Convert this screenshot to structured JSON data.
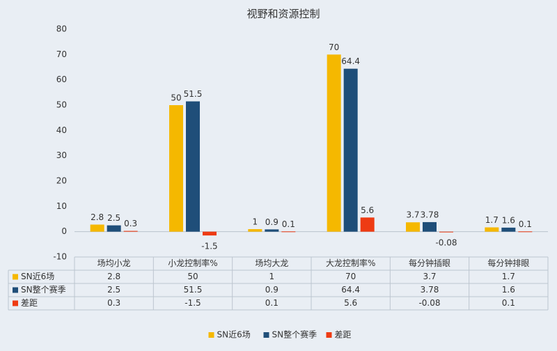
{
  "chart_data": {
    "type": "bar",
    "title": "视野和资源控制",
    "categories": [
      "场均小龙",
      "小龙控制率%",
      "场均大龙",
      "大龙控制率%",
      "每分钟插眼",
      "每分钟排眼"
    ],
    "series": [
      {
        "name": "SN近6场",
        "color": "#f5b800",
        "values": [
          2.8,
          50,
          1,
          70,
          3.7,
          1.7
        ]
      },
      {
        "name": "SN整个赛季",
        "color": "#1f4e79",
        "values": [
          2.5,
          51.5,
          0.9,
          64.4,
          3.78,
          1.6
        ]
      },
      {
        "name": "差距",
        "color": "#ee3b13",
        "values": [
          0.3,
          -1.5,
          0.1,
          5.6,
          -0.08,
          0.1
        ]
      }
    ],
    "value_labels": [
      [
        "2.8",
        "50",
        "1",
        "70",
        "3.7",
        "1.7"
      ],
      [
        "2.5",
        "51.5",
        "0.9",
        "64.4",
        "3.78",
        "1.6"
      ],
      [
        "0.3",
        "-1.5",
        "0.1",
        "5.6",
        "-0.08",
        "0.1"
      ]
    ],
    "y_ticks": [
      "-10",
      "0",
      "10",
      "20",
      "30",
      "40",
      "50",
      "60",
      "70",
      "80"
    ],
    "ylim": [
      -10,
      80
    ],
    "grid": false,
    "legend": "bottom",
    "data_table": true
  }
}
